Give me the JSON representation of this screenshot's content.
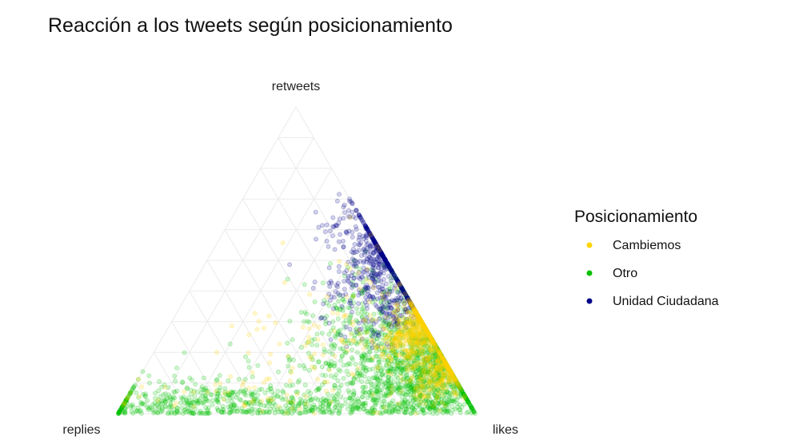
{
  "chart_data": {
    "type": "scatter",
    "subtype": "ternary",
    "title": "Reacción a los tweets según posicionamiento",
    "axes": {
      "top": "retweets",
      "left": "replies",
      "right": "likes"
    },
    "grid": true,
    "grid_step": 0.1,
    "point_alpha": 0.18,
    "legend": {
      "title": "Posicionamiento",
      "placement": "right",
      "entries": [
        {
          "name": "Cambiemos",
          "color": "#FFD400"
        },
        {
          "name": "Otro",
          "color": "#00C000"
        },
        {
          "name": "Unidad Ciudadana",
          "color": "#00008B"
        }
      ]
    },
    "series": [
      {
        "name": "Otro",
        "color": "#00C000",
        "clusters": [
          {
            "likes": 0.8,
            "retweets": 0.18,
            "spread_l": 0.09,
            "spread_r": 0.08,
            "n": 900
          },
          {
            "likes": 0.65,
            "retweets": 0.18,
            "spread_l": 0.15,
            "spread_r": 0.12,
            "n": 500
          },
          {
            "likes": 0.35,
            "retweets": 0.03,
            "spread_l": 0.3,
            "spread_r": 0.03,
            "n": 450
          },
          {
            "likes": 0.15,
            "retweets": 0.05,
            "spread_l": 0.12,
            "spread_r": 0.04,
            "n": 150
          },
          {
            "likes": 0.85,
            "retweets": 0.08,
            "spread_l": 0.1,
            "spread_r": 0.06,
            "n": 400
          },
          {
            "likes": 0.55,
            "retweets": 0.35,
            "spread_l": 0.1,
            "spread_r": 0.1,
            "n": 200
          }
        ]
      },
      {
        "name": "Unidad Ciudadana",
        "color": "#00008B",
        "clusters": [
          {
            "likes": 0.48,
            "retweets": 0.5,
            "spread_l": 0.05,
            "spread_r": 0.08,
            "n": 400
          },
          {
            "likes": 0.62,
            "retweets": 0.36,
            "spread_l": 0.06,
            "spread_r": 0.06,
            "n": 250
          },
          {
            "likes": 0.35,
            "retweets": 0.62,
            "spread_l": 0.05,
            "spread_r": 0.05,
            "n": 80
          }
        ]
      },
      {
        "name": "Cambiemos",
        "color": "#FFD400",
        "clusters": [
          {
            "likes": 0.72,
            "retweets": 0.27,
            "spread_l": 0.05,
            "spread_r": 0.05,
            "n": 700
          },
          {
            "likes": 0.85,
            "retweets": 0.13,
            "spread_l": 0.05,
            "spread_r": 0.04,
            "n": 350
          },
          {
            "likes": 0.5,
            "retweets": 0.3,
            "spread_l": 0.15,
            "spread_r": 0.12,
            "n": 120
          },
          {
            "likes": 0.35,
            "retweets": 0.05,
            "spread_l": 0.25,
            "spread_r": 0.04,
            "n": 60
          }
        ]
      }
    ]
  }
}
